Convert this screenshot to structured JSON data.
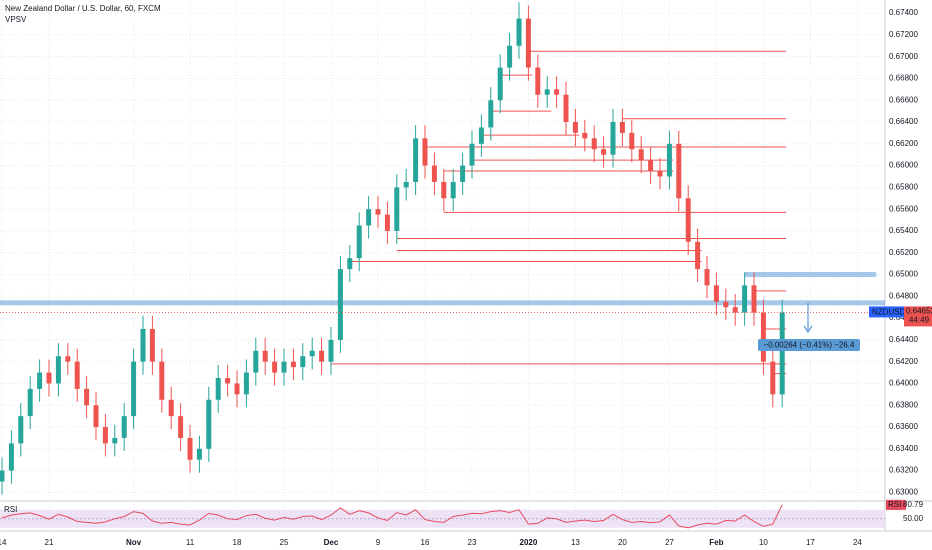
{
  "chart_data": {
    "type": "candlestick",
    "title": "New Zealand Dollar / U.S. Dollar, 60, FXCM",
    "subtitle": "VPSV",
    "symbol": "NZDUSD",
    "last_price": 0.64652,
    "countdown": "44:49",
    "annotation": "−0.00264 (−0.41%) −26.4",
    "up_color": "#26a69a",
    "down_color": "#ef5350",
    "grid": true,
    "categories": [
      "14",
      null,
      null,
      null,
      null,
      "21",
      null,
      null,
      null,
      null,
      null,
      null,
      null,
      null,
      "Nov",
      null,
      null,
      null,
      null,
      null,
      "11",
      null,
      null,
      null,
      null,
      "18",
      null,
      null,
      null,
      null,
      "25",
      null,
      null,
      null,
      null,
      "Dec",
      null,
      null,
      null,
      null,
      "9",
      null,
      null,
      null,
      null,
      "16",
      null,
      null,
      null,
      null,
      "23",
      null,
      null,
      null,
      null,
      null,
      "2020",
      null,
      null,
      null,
      null,
      "13",
      null,
      null,
      null,
      null,
      "20",
      null,
      null,
      null,
      null,
      "27",
      null,
      null,
      null,
      null,
      "Feb",
      null,
      null,
      null,
      null,
      "10",
      null,
      null,
      null,
      null,
      "17",
      null,
      null,
      null,
      null,
      "24",
      null,
      null
    ],
    "open": [
      0.631,
      0.632,
      0.6345,
      0.637,
      0.6395,
      0.641,
      0.64,
      0.6425,
      0.642,
      0.6395,
      0.638,
      0.636,
      0.6345,
      0.635,
      0.637,
      0.642,
      0.645,
      0.642,
      0.6385,
      0.637,
      0.635,
      0.633,
      0.634,
      0.6385,
      0.6405,
      0.64,
      0.639,
      0.641,
      0.643,
      0.642,
      0.641,
      0.642,
      0.6415,
      0.6425,
      0.643,
      0.642,
      0.644,
      0.6505,
      0.6515,
      0.6545,
      0.656,
      0.6555,
      0.654,
      0.658,
      0.6585,
      0.6625,
      0.66,
      0.6585,
      0.657,
      0.6585,
      0.66,
      0.662,
      0.6635,
      0.666,
      0.669,
      0.671,
      0.6735,
      0.669,
      0.6665,
      0.667,
      0.6665,
      0.664,
      0.663,
      0.6625,
      0.6615,
      0.661,
      0.664,
      0.663,
      0.6615,
      0.6605,
      0.6595,
      0.659,
      0.662,
      0.657,
      0.653,
      0.6505,
      0.649,
      0.6475,
      0.647,
      0.6465,
      0.649,
      0.6465,
      0.642,
      0.639,
      null,
      null,
      null,
      null,
      null,
      null,
      null,
      null,
      null,
      null
    ],
    "high": [
      0.6332,
      0.6357,
      0.6382,
      0.6407,
      0.6422,
      0.6422,
      0.6437,
      0.6437,
      0.6432,
      0.6407,
      0.6392,
      0.6372,
      0.6362,
      0.6382,
      0.6432,
      0.6462,
      0.6462,
      0.6432,
      0.6397,
      0.6382,
      0.6362,
      0.6352,
      0.6397,
      0.6417,
      0.6417,
      0.6412,
      0.6422,
      0.6442,
      0.6442,
      0.6432,
      0.6432,
      0.6432,
      0.6437,
      0.6442,
      0.6442,
      0.6452,
      0.6517,
      0.6527,
      0.6557,
      0.6572,
      0.6572,
      0.6567,
      0.6592,
      0.6597,
      0.6637,
      0.6637,
      0.6612,
      0.6597,
      0.6597,
      0.6612,
      0.6632,
      0.6647,
      0.6672,
      0.6702,
      0.6722,
      0.675,
      0.6747,
      0.6702,
      0.6682,
      0.6682,
      0.6677,
      0.6652,
      0.6642,
      0.6637,
      0.6627,
      0.6652,
      0.6652,
      0.6642,
      0.6627,
      0.6617,
      0.6607,
      0.6632,
      0.6632,
      0.6582,
      0.6542,
      0.6517,
      0.6502,
      0.6487,
      0.6482,
      0.6502,
      0.6502,
      0.6477,
      0.6432,
      0.6477,
      null,
      null,
      null,
      null,
      null,
      null,
      null,
      null,
      null,
      null
    ],
    "low": [
      0.6298,
      0.6308,
      0.6333,
      0.6358,
      0.6383,
      0.6388,
      0.6388,
      0.6408,
      0.6383,
      0.6368,
      0.6348,
      0.6333,
      0.6333,
      0.6338,
      0.6358,
      0.6408,
      0.6408,
      0.6373,
      0.6358,
      0.6338,
      0.6318,
      0.6318,
      0.6328,
      0.6373,
      0.6388,
      0.6378,
      0.6378,
      0.6398,
      0.6408,
      0.6398,
      0.6398,
      0.6403,
      0.6403,
      0.6413,
      0.6408,
      0.6408,
      0.6428,
      0.6493,
      0.6503,
      0.6533,
      0.6543,
      0.6528,
      0.6528,
      0.6568,
      0.6573,
      0.6588,
      0.6573,
      0.6558,
      0.6558,
      0.6573,
      0.6588,
      0.6608,
      0.6623,
      0.6648,
      0.6678,
      0.6698,
      0.6678,
      0.6653,
      0.6653,
      0.6653,
      0.6628,
      0.6618,
      0.6613,
      0.6603,
      0.6598,
      0.6598,
      0.6618,
      0.6603,
      0.6593,
      0.6583,
      0.6578,
      0.6578,
      0.6558,
      0.6518,
      0.6493,
      0.6478,
      0.6463,
      0.6458,
      0.6453,
      0.6453,
      0.6453,
      0.6408,
      0.6378,
      0.6378,
      null,
      null,
      null,
      null,
      null,
      null,
      null,
      null,
      null,
      null
    ],
    "close": [
      0.632,
      0.6345,
      0.637,
      0.6395,
      0.641,
      0.64,
      0.6425,
      0.642,
      0.6395,
      0.638,
      0.636,
      0.6345,
      0.635,
      0.637,
      0.642,
      0.645,
      0.642,
      0.6385,
      0.637,
      0.635,
      0.633,
      0.634,
      0.6385,
      0.6405,
      0.64,
      0.639,
      0.641,
      0.643,
      0.642,
      0.641,
      0.642,
      0.6415,
      0.6425,
      0.643,
      0.642,
      0.644,
      0.6505,
      0.6515,
      0.6545,
      0.656,
      0.6555,
      0.654,
      0.658,
      0.6585,
      0.6625,
      0.66,
      0.6585,
      0.657,
      0.6585,
      0.66,
      0.662,
      0.6635,
      0.666,
      0.669,
      0.671,
      0.6735,
      0.669,
      0.6665,
      0.667,
      0.6665,
      0.664,
      0.663,
      0.6625,
      0.6615,
      0.661,
      0.664,
      0.663,
      0.6615,
      0.6605,
      0.6595,
      0.659,
      0.662,
      0.657,
      0.653,
      0.6505,
      0.649,
      0.6475,
      0.647,
      0.6465,
      0.649,
      0.6465,
      0.642,
      0.639,
      0.6465,
      null,
      null,
      null,
      null,
      null,
      null,
      null,
      null,
      null,
      null
    ],
    "ylim": [
      0.6293,
      0.6752
    ],
    "yticks": [
      {
        "value": 0.63,
        "label": "0.63000"
      },
      {
        "value": 0.632,
        "label": "0.63200"
      },
      {
        "value": 0.634,
        "label": "0.63400"
      },
      {
        "value": 0.636,
        "label": "0.63600"
      },
      {
        "value": 0.638,
        "label": "0.63800"
      },
      {
        "value": 0.64,
        "label": "0.64000"
      },
      {
        "value": 0.642,
        "label": "0.64200"
      },
      {
        "value": 0.644,
        "label": "0.64400"
      },
      {
        "value": 0.646,
        "label": "0.64600"
      },
      {
        "value": 0.648,
        "label": "0.64800"
      },
      {
        "value": 0.65,
        "label": "0.65000"
      },
      {
        "value": 0.652,
        "label": "0.65200"
      },
      {
        "value": 0.654,
        "label": "0.65400"
      },
      {
        "value": 0.656,
        "label": "0.65600"
      },
      {
        "value": 0.658,
        "label": "0.65800"
      },
      {
        "value": 0.66,
        "label": "0.66000"
      },
      {
        "value": 0.662,
        "label": "0.66200"
      },
      {
        "value": 0.664,
        "label": "0.66400"
      },
      {
        "value": 0.666,
        "label": "0.66600"
      },
      {
        "value": 0.668,
        "label": "0.66800"
      },
      {
        "value": 0.67,
        "label": "0.67000"
      },
      {
        "value": 0.672,
        "label": "0.67200"
      },
      {
        "value": 0.674,
        "label": "0.67400"
      }
    ],
    "levels": [
      {
        "value": 0.6705,
        "from": 56,
        "to": 83
      },
      {
        "value": 0.6683,
        "from": 53,
        "to": 56
      },
      {
        "value": 0.665,
        "from": 52,
        "to": 58
      },
      {
        "value": 0.6643,
        "from": 66,
        "to": 83
      },
      {
        "value": 0.6628,
        "from": 51,
        "to": 61
      },
      {
        "value": 0.6617,
        "from": 45,
        "to": 83
      },
      {
        "value": 0.6605,
        "from": 50,
        "to": 71
      },
      {
        "value": 0.6595,
        "from": 47,
        "to": 71
      },
      {
        "value": 0.6557,
        "from": 47,
        "to": 83
      },
      {
        "value": 0.6533,
        "from": 42,
        "to": 83
      },
      {
        "value": 0.6522,
        "from": 42,
        "to": 74
      },
      {
        "value": 0.6512,
        "from": 37,
        "to": 74
      },
      {
        "value": 0.6485,
        "from": 80,
        "to": 83
      },
      {
        "value": 0.645,
        "from": 81,
        "to": 83
      },
      {
        "value": 0.6418,
        "from": 35,
        "to": 83
      },
      {
        "value": 0.6409,
        "from": 82,
        "to": 83
      }
    ],
    "level_color": "#ef5350",
    "zones": [
      {
        "value": 0.6474,
        "from": 0,
        "to": 93
      },
      {
        "value": 0.65,
        "from": 79,
        "to": 93
      }
    ],
    "zone_color": "#5b9bd5",
    "rsi": {
      "name": "RSI",
      "color": "#e84a5f",
      "band": [
        30,
        70
      ],
      "ylim": [
        25,
        85
      ],
      "yticks": [
        {
          "value": 50,
          "label": "50.00"
        }
      ],
      "values": [
        52,
        58,
        61,
        63,
        57,
        49,
        60,
        54,
        44,
        42,
        40,
        43,
        50,
        55,
        66,
        62,
        45,
        40,
        42,
        38,
        36,
        47,
        62,
        58,
        50,
        48,
        57,
        60,
        51,
        47,
        53,
        49,
        55,
        56,
        48,
        58,
        74,
        60,
        68,
        63,
        52,
        46,
        64,
        58,
        70,
        48,
        44,
        42,
        55,
        58,
        62,
        61,
        66,
        68,
        64,
        70,
        38,
        40,
        52,
        50,
        42,
        45,
        47,
        44,
        46,
        60,
        48,
        42,
        44,
        41,
        43,
        58,
        34,
        30,
        36,
        40,
        38,
        46,
        45,
        58,
        44,
        33,
        38,
        80.79,
        null,
        null,
        null,
        null,
        null,
        null,
        null,
        null,
        null,
        null
      ]
    }
  }
}
